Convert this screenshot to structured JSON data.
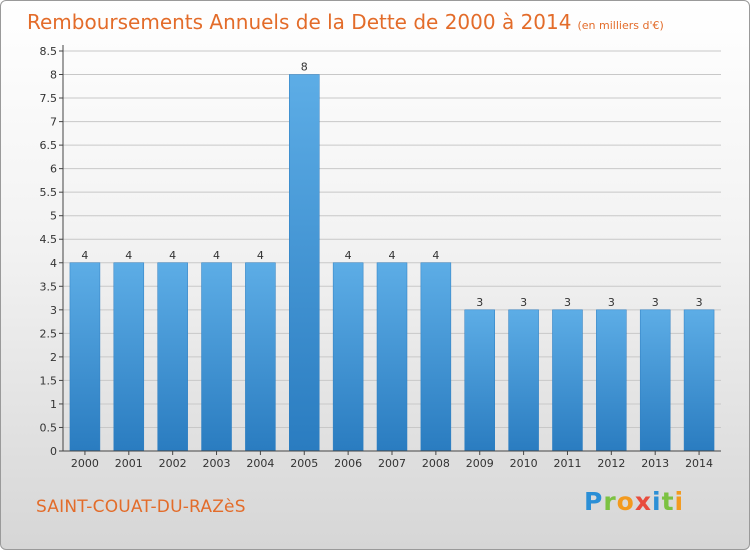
{
  "header": {
    "title": "Remboursements Annuels de la Dette de 2000 à 2014",
    "unit": "(en milliers d'€)"
  },
  "footer": {
    "commune": "SAINT-COUAT-DU-RAZèS",
    "brand_letters": [
      "P",
      "r",
      "o",
      "x",
      "i",
      "t",
      "i"
    ],
    "brand_colors": [
      "#2b8fd6",
      "#7cc242",
      "#f39a1e",
      "#e84c3d",
      "#2b8fd6",
      "#7cc242",
      "#f39a1e"
    ]
  },
  "colors": {
    "bar_top": "#5dade6",
    "bar_bottom": "#2a7cc0",
    "axis": "#444444",
    "grid": "#c8c8c8"
  },
  "chart_data": {
    "type": "bar",
    "categories": [
      "2000",
      "2001",
      "2002",
      "2003",
      "2004",
      "2005",
      "2006",
      "2007",
      "2008",
      "2009",
      "2010",
      "2011",
      "2012",
      "2013",
      "2014"
    ],
    "values": [
      4,
      4,
      4,
      4,
      4,
      8,
      4,
      4,
      4,
      3,
      3,
      3,
      3,
      3,
      3
    ],
    "data_labels": [
      "4",
      "4",
      "4",
      "4",
      "4",
      "8",
      "4",
      "4",
      "4",
      "3",
      "3",
      "3",
      "3",
      "3",
      "3"
    ],
    "ylim": [
      0,
      8.5
    ],
    "yticks": [
      0,
      0.5,
      1,
      1.5,
      2,
      2.5,
      3,
      3.5,
      4,
      4.5,
      5,
      5.5,
      6,
      6.5,
      7,
      7.5,
      8,
      8.5
    ],
    "ytick_labels": [
      "0",
      "0.5",
      "1",
      "1.5",
      "2",
      "2.5",
      "3",
      "3.5",
      "4",
      "4.5",
      "5",
      "5.5",
      "6",
      "6.5",
      "7",
      "7.5",
      "8",
      "8.5"
    ],
    "grid": "horizontal",
    "xlabel": "",
    "ylabel": ""
  }
}
